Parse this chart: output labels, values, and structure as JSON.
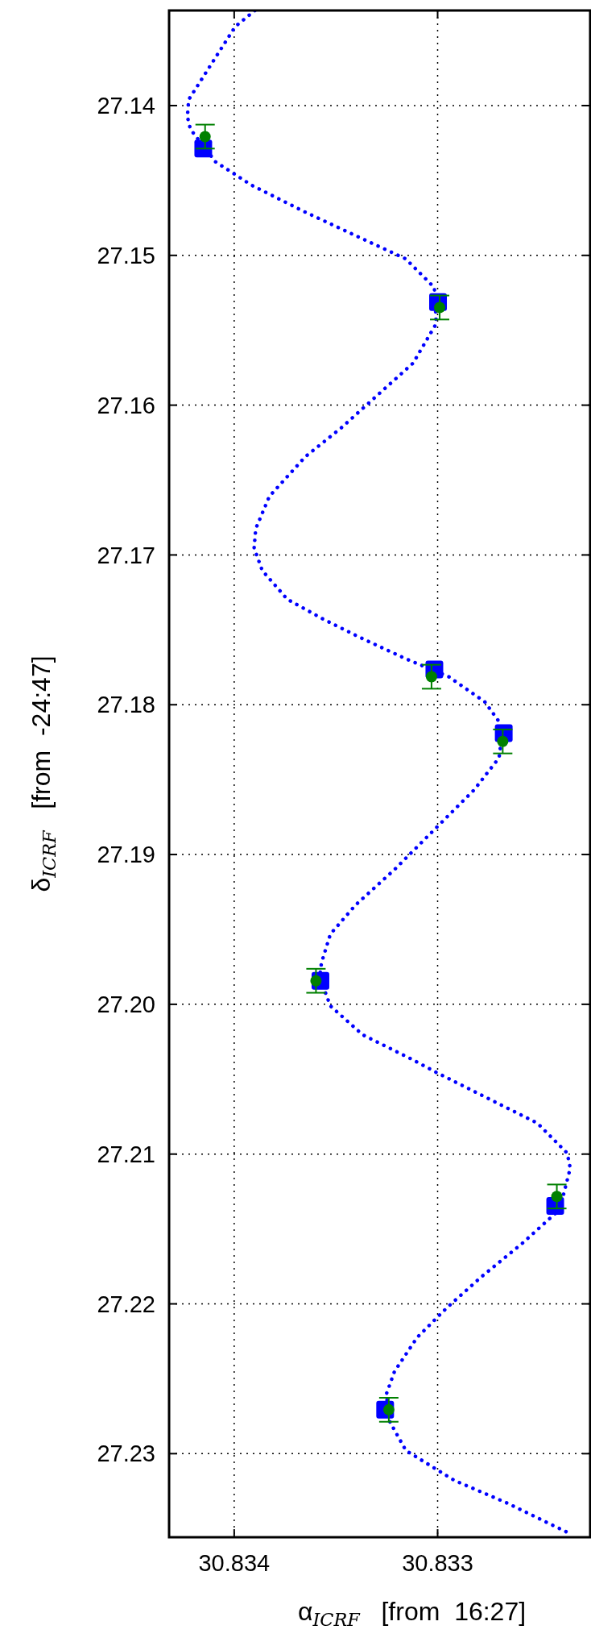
{
  "chart_data": {
    "type": "scatter",
    "xlabel": "α$_{ICRF}$  [from  16:27]",
    "ylabel": "δ$_{ICRF}$  [from  -24:47]",
    "xlim": [
      30.83432,
      30.83225
    ],
    "ylim": [
      27.23558,
      27.13365
    ],
    "xticks": [
      30.834,
      30.833
    ],
    "yticks": [
      27.14,
      27.15,
      27.16,
      27.17,
      27.18,
      27.19,
      {
        "value": 27.2,
        "label": "27.20"
      },
      27.21,
      27.22,
      27.23
    ],
    "grid": true,
    "series": [
      {
        "type": "line",
        "color": "#0000ff",
        "line_style": "dotted",
        "x": [
          30.833898,
          30.833995,
          30.834224,
          30.83423,
          30.834215,
          30.834092,
          30.833915,
          30.833651,
          30.833386,
          30.833157,
          30.833016,
          30.833007,
          30.833121,
          30.833298,
          30.833474,
          30.833651,
          30.833827,
          30.833894,
          30.833902,
          30.833862,
          30.833739,
          30.833563,
          30.833386,
          30.833157,
          30.832945,
          30.832768,
          30.832698,
          30.832685,
          30.832698,
          30.832821,
          30.833016,
          30.83321,
          30.833404,
          30.833527,
          30.833571,
          30.83358,
          30.833527,
          30.833369,
          30.833121,
          30.833009,
          30.832769,
          30.83251,
          30.832363,
          30.832348,
          30.8324,
          30.832584,
          30.832787,
          30.832953,
          30.833101,
          30.833212,
          30.833252,
          30.833239,
          30.833156,
          30.832917,
          30.832658,
          30.832354
        ],
        "values": [
          27.13365,
          27.13473,
          27.13961,
          27.14075,
          27.14158,
          27.14375,
          27.14531,
          27.14711,
          27.14879,
          27.15023,
          27.15215,
          27.15456,
          27.1572,
          27.15936,
          27.16152,
          27.16345,
          27.16609,
          27.16825,
          27.16953,
          27.17104,
          27.17296,
          27.17428,
          27.17548,
          27.17693,
          27.17813,
          27.17981,
          27.18113,
          27.18218,
          27.18354,
          27.18569,
          27.18834,
          27.19098,
          27.19338,
          27.19531,
          27.19723,
          27.19819,
          27.20011,
          27.20203,
          27.20371,
          27.20453,
          27.20617,
          27.20793,
          27.20994,
          27.21094,
          27.2137,
          27.21596,
          27.21822,
          27.22024,
          27.22225,
          27.22451,
          27.22602,
          27.22777,
          27.22979,
          27.23179,
          27.2333,
          27.23531
        ]
      },
      {
        "color": "#0000ff",
        "marker": "square",
        "x": [
          30.834152,
          30.832998,
          30.833016,
          30.832675,
          30.833576,
          30.832422,
          30.833258
        ],
        "values": [
          27.14286,
          27.15312,
          27.17765,
          27.1819,
          27.19843,
          27.21346,
          27.22707
        ]
      },
      {
        "color": "#008000",
        "marker": "circle",
        "x": [
          30.834143,
          30.83299,
          30.83303,
          30.83268,
          30.833598,
          30.832414,
          30.83324
        ],
        "values": [
          27.14207,
          27.15348,
          27.17813,
          27.18245,
          27.19843,
          27.21283,
          27.22707
        ],
        "errors": [
          0.0008,
          0.0008,
          0.0008,
          0.0008,
          0.0008,
          0.0008,
          0.0008
        ]
      }
    ]
  }
}
